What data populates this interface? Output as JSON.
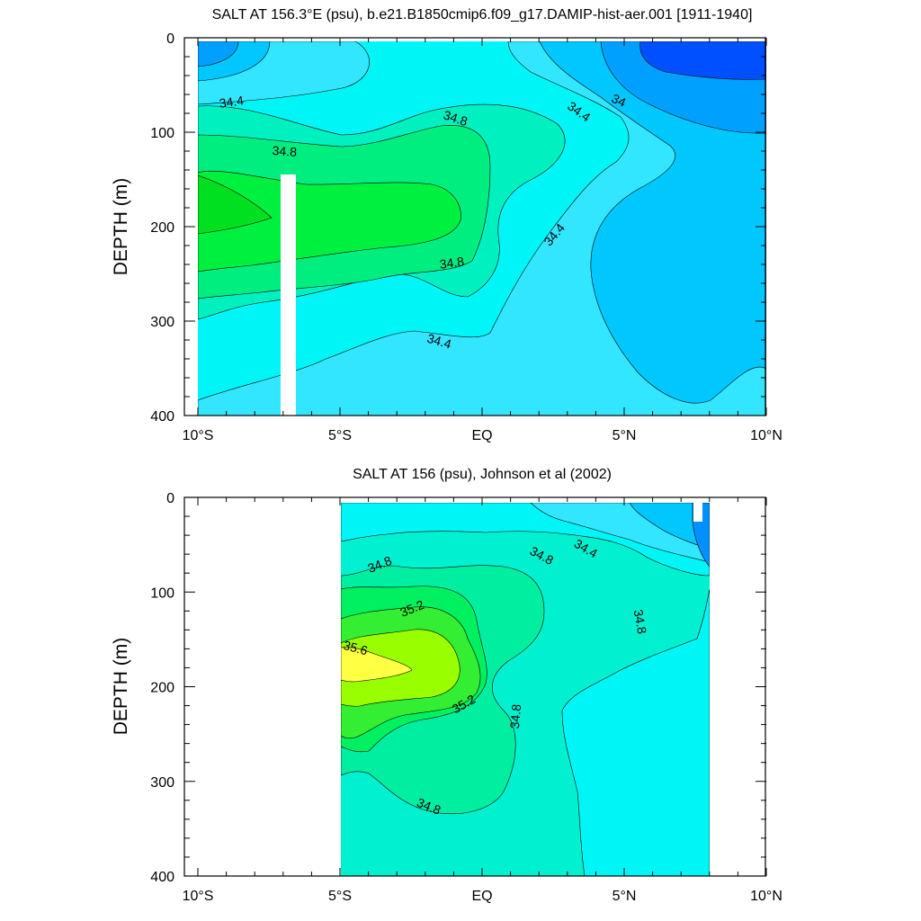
{
  "chart_data": [
    {
      "type": "contour",
      "title": "SALT AT 156.3°E (psu), b.e21.B1850cmip6.f09_g17.DAMIP-hist-aer.001 [1911-1940]",
      "ylabel": "DEPTH (m)",
      "xlabel": "",
      "xlim": [
        -10,
        10
      ],
      "ylim": [
        400,
        0
      ],
      "x_ticks": [
        -10,
        -5,
        0,
        5,
        10
      ],
      "x_tick_labels": [
        "10°S",
        "5°S",
        "EQ",
        "5°N",
        "10°N"
      ],
      "y_ticks": [
        0,
        100,
        200,
        300,
        400
      ],
      "y_tick_labels": [
        "0",
        "100",
        "200",
        "300",
        "400"
      ],
      "contour_labels": [
        "34.4",
        "34.8",
        "34.8",
        "34.8",
        "34.4",
        "34",
        "34.4",
        "34.4"
      ],
      "fill_levels": [
        {
          "range": "< 33.8",
          "color": "#0050ff"
        },
        {
          "range": "33.8-34.0",
          "color": "#00a0ff"
        },
        {
          "range": "34.0-34.2",
          "color": "#00c8ff"
        },
        {
          "range": "34.2-34.4",
          "color": "#33e6ff"
        },
        {
          "range": "34.4-34.6",
          "color": "#00f6f6"
        },
        {
          "range": "34.6-34.8",
          "color": "#00f0c0"
        },
        {
          "range": "34.8-35.0",
          "color": "#00ee80"
        },
        {
          "range": "35.0-35.2",
          "color": "#00f040"
        }
      ]
    },
    {
      "type": "contour",
      "title": "SALT AT 156 (psu), Johnson et al (2002)",
      "ylabel": "DEPTH (m)",
      "xlabel": "",
      "xlim": [
        -10,
        10
      ],
      "ylim": [
        400,
        0
      ],
      "x_ticks": [
        -10,
        -5,
        0,
        5,
        10
      ],
      "x_tick_labels": [
        "10°S",
        "5°S",
        "EQ",
        "5°N",
        "10°N"
      ],
      "y_ticks": [
        0,
        100,
        200,
        300,
        400
      ],
      "y_tick_labels": [
        "0",
        "100",
        "200",
        "300",
        "400"
      ],
      "data_extent_lat": [
        -5,
        8
      ],
      "contour_labels": [
        "34.8",
        "34.8",
        "34.4",
        "35.2",
        "34.8",
        "35.6",
        "35.2",
        "34.8",
        "34.8"
      ],
      "fill_levels": [
        {
          "range": "34.0-34.2",
          "color": "#00a8ff"
        },
        {
          "range": "34.2-34.4",
          "color": "#33e6ff"
        },
        {
          "range": "34.4-34.6",
          "color": "#00f6f6"
        },
        {
          "range": "34.6-34.8",
          "color": "#00f0d0"
        },
        {
          "range": "34.8-35.0",
          "color": "#00eea0"
        },
        {
          "range": "35.0-35.2",
          "color": "#00f060"
        },
        {
          "range": "35.2-35.4",
          "color": "#33ee33"
        },
        {
          "range": "35.4-35.6",
          "color": "#99ff00"
        },
        {
          "range": "> 35.6",
          "color": "#ffff44"
        }
      ]
    }
  ]
}
